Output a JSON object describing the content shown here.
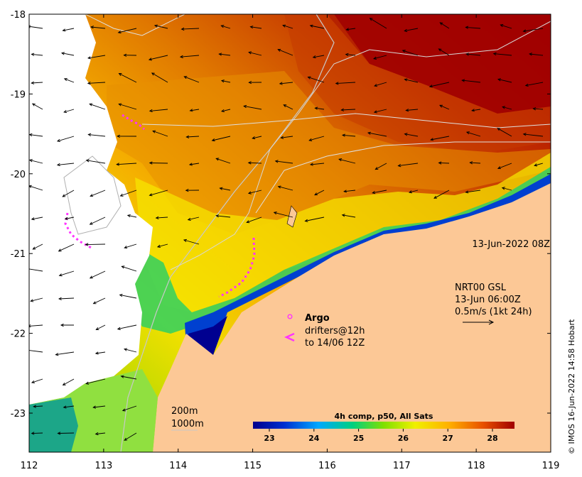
{
  "map": {
    "lon_ticks": [
      "112",
      "113",
      "114",
      "115",
      "116",
      "117",
      "118",
      "119"
    ],
    "lat_ticks": [
      "-18",
      "-19",
      "-20",
      "-21",
      "-22",
      "-23"
    ],
    "timestamp": "13-Jun-2022 08Z",
    "current_model": {
      "line1": "NRT00 GSL",
      "line2": "13-Jun 06:00Z",
      "line3": "0.5m/s (1kt 24h)"
    },
    "legend": {
      "argo_label": "Argo",
      "drifters_line1": "drifters@12h",
      "drifters_line2": "to 14/06 12Z",
      "argo_color": "#ff33ff",
      "drifter_color": "#ff33ff"
    },
    "isobaths": {
      "label_200": "200m",
      "label_1000": "1000m"
    },
    "colorbar": {
      "title": "4h comp, p50, All Sats",
      "ticks": [
        "23",
        "24",
        "25",
        "26",
        "27",
        "28"
      ]
    },
    "credit": "© IMOS 16-Jun-2022 14:58 Hobart",
    "colors": {
      "land": "#fcc896",
      "warm": "#b40000",
      "cool": "#000090",
      "cloud": "#ffffff"
    }
  }
}
